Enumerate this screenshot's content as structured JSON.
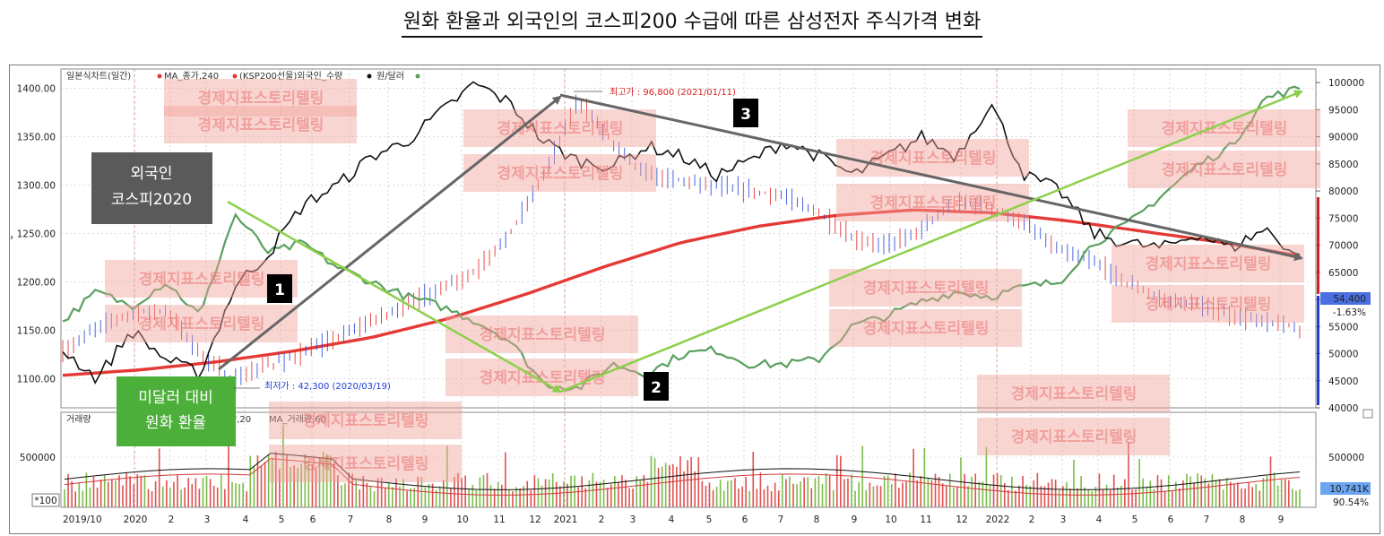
{
  "page_title": "원화 환율과 외국인의 코스피200 수급에 따른 삼성전자 주식가격 변화",
  "legend": {
    "chart_name": "일본식차트(일간)",
    "ma_close": "MA_종가,240",
    "foreign": "(KSP200선물)외국인_수량",
    "fx": "원/달러"
  },
  "volume_legend": {
    "label": "거래량",
    "ma20_tail": "량,20",
    "ma60": "MA_거래량,60"
  },
  "watermark": "경제지표스토리텔링",
  "callouts": {
    "foreign": [
      "외국인",
      "코스피2020"
    ],
    "fx": [
      "미달러 대비",
      "원화 환율"
    ]
  },
  "annotations": {
    "n1": "1",
    "n2": "2",
    "n3": "3"
  },
  "price_notes": {
    "high": "최고가 : 96,800 (2021/01/11)",
    "low": "최저가 : 42,300 (2020/03/19)"
  },
  "badges": {
    "last_price": "54,400",
    "change": "-1.63%",
    "last_volume": "10,741K",
    "volume_pct": "90.54%",
    "scale_tag": "*100"
  },
  "colors": {
    "price_up": "#e02020",
    "price_down": "#1f3fd6",
    "ma240": "#e53935",
    "foreign": "#111111",
    "fx": "#5aa05f",
    "arrow_green": "#8cd04a",
    "arrow_gray": "#666666",
    "callout_gray": "#5a5a5a",
    "callout_green": "#4caf3a",
    "watermark": "#f2a29c"
  },
  "chart_data": {
    "type": "line",
    "x_tick_labels": [
      "2019/10",
      "2020",
      "2",
      "3",
      "4",
      "5",
      "6",
      "7",
      "8",
      "9",
      "10",
      "11",
      "12",
      "2021",
      "2",
      "3",
      "4",
      "5",
      "6",
      "7",
      "8",
      "9",
      "10",
      "11",
      "12",
      "2022",
      "2",
      "3",
      "4",
      "5",
      "6",
      "7",
      "8",
      "9"
    ],
    "y_left": {
      "ticks": [
        "1400.00",
        "1350.00",
        "1300.00",
        "1250.00",
        "1200.00",
        "1150.00",
        "1100.00"
      ],
      "range": [
        1070,
        1420
      ]
    },
    "y_right": {
      "ticks": [
        "100000",
        "95000",
        "90000",
        "85000",
        "80000",
        "75000",
        "70000",
        "65000",
        "60000",
        "55000",
        "50000",
        "45000",
        "40000"
      ],
      "range": [
        40000,
        100000
      ]
    },
    "y_volume": {
      "ticks": [
        "500000"
      ]
    },
    "series": [
      {
        "name": "MA_종가,240",
        "axis": "right",
        "values": [
          46000,
          47000,
          48500,
          50500,
          53000,
          56500,
          61000,
          66000,
          70500,
          73500,
          75500,
          76500,
          76000,
          74500,
          72500,
          70500,
          68000
        ]
      },
      {
        "name": "원/달러",
        "axis": "left",
        "values": [
          1160,
          1190,
          1175,
          1200,
          1165,
          1270,
          1230,
          1240,
          1215,
          1200,
          1185,
          1175,
          1160,
          1140,
          1095,
          1090,
          1115,
          1105,
          1125,
          1130,
          1115,
          1115,
          1120,
          1155,
          1165,
          1180,
          1190,
          1185,
          1195,
          1200,
          1240,
          1260,
          1290,
          1320,
          1340,
          1390,
          1400
        ]
      },
      {
        "name": "(KSP200선물)외국인_수량",
        "axis": "left",
        "values": [
          1130,
          1100,
          1150,
          1120,
          1105,
          1195,
          1230,
          1280,
          1300,
          1330,
          1345,
          1375,
          1405,
          1385,
          1345,
          1325,
          1320,
          1340,
          1330,
          1310,
          1325,
          1345,
          1330,
          1310,
          1330,
          1350,
          1330,
          1385,
          1310,
          1295,
          1250,
          1240,
          1235,
          1250,
          1235,
          1255,
          1225
        ]
      },
      {
        "name": "삼성전자",
        "axis": "right",
        "values": [
          50000,
          55000,
          57500,
          58000,
          50000,
          45000,
          48000,
          50000,
          53000,
          56000,
          59000,
          62000,
          65000,
          72000,
          83000,
          96800,
          89000,
          83000,
          82000,
          81000,
          80000,
          79000,
          76000,
          71000,
          70000,
          73000,
          78000,
          77000,
          74000,
          69000,
          67000,
          63000,
          60000,
          59000,
          57000,
          56000,
          54400
        ]
      }
    ]
  }
}
